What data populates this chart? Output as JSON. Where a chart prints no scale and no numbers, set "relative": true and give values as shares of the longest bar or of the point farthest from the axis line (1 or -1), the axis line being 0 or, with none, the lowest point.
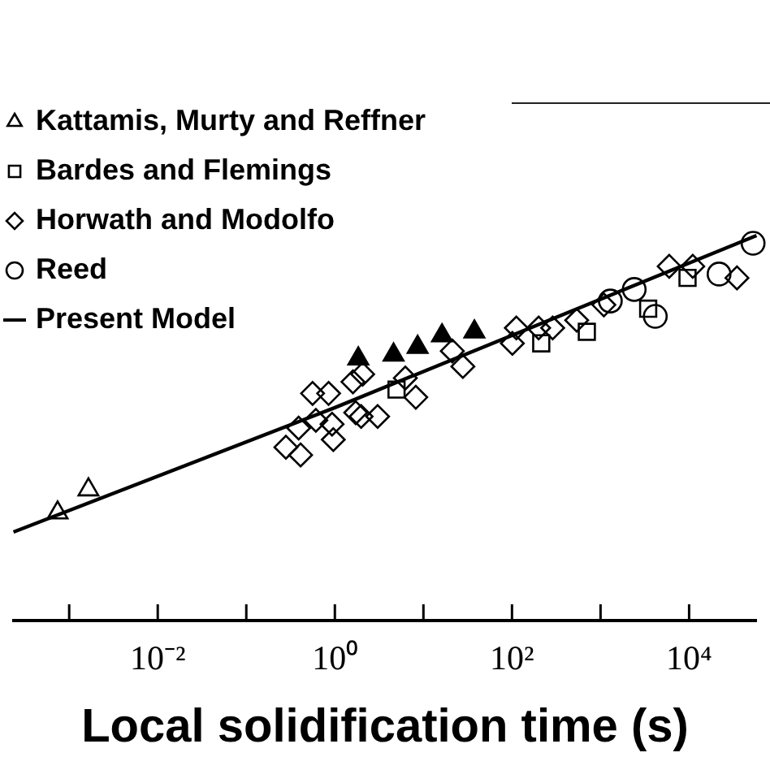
{
  "chart_data": {
    "type": "scatter",
    "xlabel": "Local solidification time (s)",
    "log": "x",
    "relative": true,
    "legend": "top left",
    "xlim": [
      0.000235,
      57700
    ],
    "xticks": [
      {
        "value": 0.001,
        "label": null
      },
      {
        "value": 0.01,
        "label": "10⁻²"
      },
      {
        "value": 0.1,
        "label": null
      },
      {
        "value": 1,
        "label": "10⁰"
      },
      {
        "value": 10,
        "label": null
      },
      {
        "value": 100,
        "label": "10²"
      },
      {
        "value": 1000,
        "label": null
      },
      {
        "value": 10000,
        "label": "10⁴"
      }
    ],
    "series": [
      {
        "name": "Kattamis, Murty and Reffner",
        "color": "#000000",
        "marker": "triangle",
        "x": [
          0.00074,
          0.00165
        ],
        "values": [
          0.28,
          0.34
        ]
      },
      {
        "name": "Bardes and Flemings",
        "color": "#000000",
        "marker": "square",
        "x": [
          4.97,
          214,
          700,
          3450,
          9600
        ],
        "values": [
          0.6,
          0.72,
          0.75,
          0.81,
          0.89
        ]
      },
      {
        "name": "Horwath and Modolfo",
        "color": "#000000",
        "marker": "diamond",
        "x": [
          0.28,
          0.41,
          0.39,
          0.56,
          0.85,
          0.61,
          0.93,
          0.96,
          1.6,
          2.06,
          1.72,
          1.98,
          3.04,
          6.25,
          8.2,
          21.2,
          27.9,
          112,
          101,
          200,
          288,
          538,
          1090,
          5960,
          11000,
          34700
        ],
        "values": [
          0.45,
          0.43,
          0.5,
          0.59,
          0.59,
          0.52,
          0.51,
          0.47,
          0.62,
          0.64,
          0.54,
          0.53,
          0.53,
          0.63,
          0.58,
          0.7,
          0.66,
          0.76,
          0.72,
          0.76,
          0.76,
          0.78,
          0.82,
          0.92,
          0.92,
          0.89
        ]
      },
      {
        "name": "Reed",
        "color": "#000000",
        "marker": "circle",
        "x": [
          1290,
          2400,
          4150,
          21800,
          52800
        ],
        "values": [
          0.83,
          0.86,
          0.79,
          0.9,
          0.98
        ]
      },
      {
        "name": "Present Model",
        "type": "line",
        "color": "#000000",
        "marker": "none",
        "line_style": "solid",
        "x": [
          0.000235,
          1,
          57700
        ],
        "values": [
          0.23,
          0.553,
          1
        ]
      },
      {
        "color": "#000000",
        "marker": "triangle",
        "x": [
          1.84,
          4.6,
          8.6,
          16.2,
          37.6
        ],
        "values": [
          0.68,
          0.69,
          0.71,
          0.74,
          0.75
        ]
      }
    ]
  }
}
